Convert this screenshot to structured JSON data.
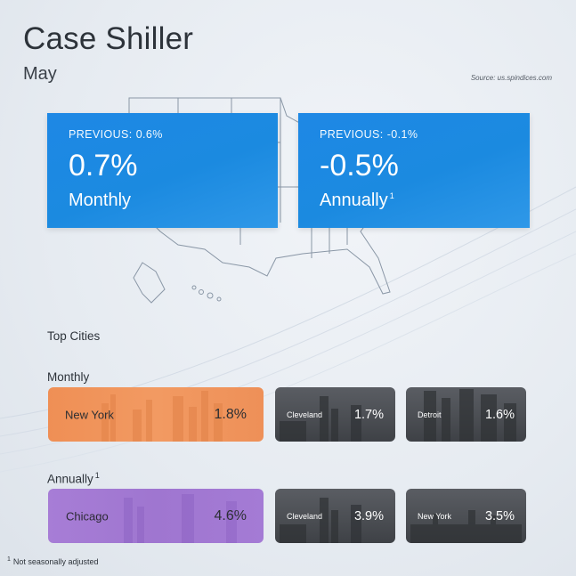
{
  "header": {
    "title": "Case Shiller",
    "subtitle": "May",
    "source": "Source: us.spindices.com"
  },
  "cards": {
    "monthly": {
      "prev_label": "PREVIOUS:",
      "prev_value": "0.6%",
      "value": "0.7%",
      "period": "Monthly",
      "footnote_mark": ""
    },
    "annual": {
      "prev_label": "PREVIOUS:",
      "prev_value": "-0.1%",
      "value": "-0.5%",
      "period": "Annually",
      "footnote_mark": "1"
    }
  },
  "sections": {
    "top_cities": "Top Cities",
    "monthly": "Monthly",
    "annually": "Annually",
    "annually_mark": "1"
  },
  "monthly_cities": [
    {
      "city": "New York",
      "value": "1.8%"
    },
    {
      "city": "Cleveland",
      "value": "1.7%"
    },
    {
      "city": "Detroit",
      "value": "1.6%"
    }
  ],
  "annual_cities": [
    {
      "city": "Chicago",
      "value": "4.6%"
    },
    {
      "city": "Cleveland",
      "value": "3.9%"
    },
    {
      "city": "New York",
      "value": "3.5%"
    }
  ],
  "footnote": {
    "mark": "1",
    "text": "Not seasonally adjusted"
  },
  "colors": {
    "card_blue": "#1e88e5",
    "highlight_monthly": "#f29a62",
    "highlight_annual": "#a77dd6",
    "tile_dark": "#4a4d52"
  }
}
